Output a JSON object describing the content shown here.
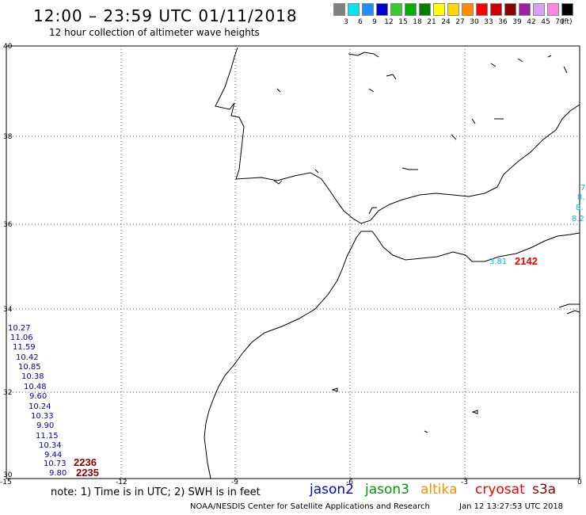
{
  "header": {
    "title": "12:00 – 23:59 UTC 01/11/2018",
    "subtitle": "12 hour collection of altimeter wave heights"
  },
  "color_scale": {
    "unit": "(ft)",
    "swatches": [
      {
        "label": "3",
        "color": "#7f7f7f"
      },
      {
        "label": "6",
        "color": "#00e5ee"
      },
      {
        "label": "9",
        "color": "#1e90ff"
      },
      {
        "label": "12",
        "color": "#0000cd"
      },
      {
        "label": "15",
        "color": "#32cd32"
      },
      {
        "label": "18",
        "color": "#00b000"
      },
      {
        "label": "21",
        "color": "#008000"
      },
      {
        "label": "24",
        "color": "#ffff00"
      },
      {
        "label": "27",
        "color": "#ffd700"
      },
      {
        "label": "30",
        "color": "#ff8c00"
      },
      {
        "label": "33",
        "color": "#ff0000"
      },
      {
        "label": "36",
        "color": "#cc0000"
      },
      {
        "label": "39",
        "color": "#8b0000"
      },
      {
        "label": "42",
        "color": "#a020a0"
      },
      {
        "label": "45",
        "color": "#d8a0f0"
      },
      {
        "label": "70",
        "color": "#ff88dd"
      },
      {
        "label": "",
        "color": "#000000"
      }
    ]
  },
  "map": {
    "lon_ticks": [
      "-15",
      "-12",
      "-9",
      "-6",
      "-3",
      "0"
    ],
    "lat_ticks": [
      "40",
      "38",
      "36",
      "34",
      "32",
      "30"
    ],
    "track_west": {
      "color": "#0000aa",
      "values": [
        "10.27",
        "11.06",
        "11.59",
        "10.42",
        "10.85",
        "10.38",
        "10.48",
        "9.60",
        "10.24",
        "10.33",
        "9.90",
        "11.15",
        "10.34",
        "9.44",
        "10.73",
        "9.80"
      ]
    },
    "track_east": {
      "color": "#00b8e0",
      "values": [
        "7",
        "8.",
        "8.",
        "8.2",
        "3.81"
      ]
    },
    "time_labels": [
      {
        "text": "2236",
        "color": "#8b0000"
      },
      {
        "text": "2235",
        "color": "#8b0000"
      },
      {
        "text": "2142",
        "color": "#ee0000"
      }
    ]
  },
  "footer": {
    "note": "note:  1) Time is in UTC;  2) SWH is in feet",
    "satellites": [
      {
        "name": "jason2",
        "color": "#0000cc"
      },
      {
        "name": "jason3",
        "color": "#009900"
      },
      {
        "name": "altika",
        "color": "#ff8c00"
      },
      {
        "name": "cryosat",
        "color": "#ee0000"
      },
      {
        "name": "s3a",
        "color": "#8b0000"
      }
    ],
    "credit": "NOAA/NESDIS Center for Satellite Applications and Research",
    "timestamp": "Jan 12 13:27:53 UTC 2018"
  }
}
